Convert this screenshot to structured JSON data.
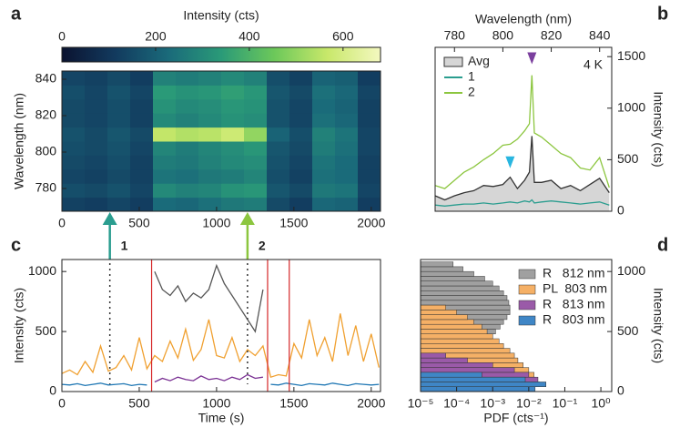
{
  "chart_data": [
    {
      "type": "heatmap",
      "panel": "a",
      "ylabel": "Wavelength (nm)",
      "colorbar_label": "Intensity (cts)",
      "xlim": [
        0,
        2060
      ],
      "xticks": [
        0,
        500,
        1000,
        1500,
        2000
      ],
      "ylim": [
        767.5,
        844.5
      ],
      "yticks": [
        780,
        800,
        820,
        840
      ],
      "clim": [
        0,
        680
      ],
      "cticks": [
        0,
        200,
        400,
        600
      ],
      "colormap": [
        "#0b1330",
        "#123a5e",
        "#1a6a7a",
        "#2a9a78",
        "#6cc85a",
        "#c8e86a",
        "#f4f8c0"
      ],
      "z": [
        [
          130,
          120,
          140,
          120,
          230,
          220,
          240,
          260,
          270,
          150,
          120,
          220,
          210,
          120
        ],
        [
          160,
          150,
          170,
          140,
          300,
          280,
          290,
          320,
          330,
          180,
          150,
          260,
          250,
          140
        ],
        [
          140,
          130,
          150,
          130,
          250,
          240,
          260,
          270,
          290,
          160,
          130,
          240,
          230,
          130
        ],
        [
          150,
          140,
          160,
          130,
          270,
          260,
          280,
          300,
          310,
          170,
          140,
          250,
          230,
          130
        ],
        [
          160,
          150,
          170,
          140,
          290,
          270,
          290,
          310,
          330,
          180,
          150,
          270,
          240,
          140
        ],
        [
          170,
          150,
          180,
          150,
          560,
          540,
          550,
          580,
          500,
          210,
          160,
          280,
          250,
          140
        ],
        [
          150,
          140,
          160,
          130,
          300,
          280,
          300,
          320,
          310,
          170,
          140,
          240,
          220,
          130
        ],
        [
          150,
          140,
          160,
          130,
          320,
          300,
          310,
          330,
          320,
          170,
          140,
          230,
          210,
          130
        ],
        [
          160,
          140,
          170,
          140,
          340,
          320,
          330,
          350,
          330,
          180,
          150,
          240,
          220,
          140
        ],
        [
          140,
          130,
          150,
          120,
          280,
          270,
          280,
          300,
          280,
          160,
          130,
          210,
          200,
          120
        ]
      ]
    },
    {
      "type": "line",
      "panel": "b",
      "xlabel": "Wavelength (nm)",
      "ylabel": "Intensity (cts)",
      "annotation": "4 K",
      "xaxis_position": "top",
      "yaxis_position": "right",
      "legend": "upper left",
      "xlim": [
        772,
        845
      ],
      "xticks": [
        780,
        800,
        820,
        840
      ],
      "ylim": [
        0,
        1590
      ],
      "yticks": [
        0,
        500,
        1000,
        1500
      ],
      "x": [
        772,
        776,
        780,
        784,
        788,
        792,
        796,
        800,
        803,
        806,
        809,
        811,
        812,
        813,
        816,
        820,
        824,
        828,
        832,
        836,
        840,
        844
      ],
      "series": [
        {
          "name": "Avg",
          "color": "#333333",
          "fill": "#d6d6d6",
          "values": [
            150,
            110,
            150,
            180,
            200,
            250,
            240,
            260,
            330,
            220,
            300,
            380,
            730,
            280,
            280,
            300,
            220,
            250,
            200,
            260,
            320,
            180
          ]
        },
        {
          "name": "1",
          "color": "#2a9d8f",
          "values": [
            60,
            50,
            60,
            70,
            70,
            80,
            70,
            80,
            90,
            80,
            100,
            90,
            110,
            80,
            90,
            100,
            90,
            80,
            70,
            80,
            90,
            60
          ]
        },
        {
          "name": "2",
          "color": "#8cc63f",
          "values": [
            250,
            220,
            300,
            380,
            430,
            500,
            560,
            640,
            650,
            700,
            780,
            850,
            1320,
            760,
            720,
            640,
            560,
            520,
            420,
            400,
            520,
            230
          ]
        }
      ],
      "markers": [
        {
          "x": 812,
          "y": 1480,
          "color": "#7b3f9e"
        },
        {
          "x": 803,
          "y": 470,
          "color": "#29b6e0"
        }
      ]
    },
    {
      "type": "line",
      "panel": "c",
      "xlabel": "Time (s)",
      "ylabel": "Intensity (cts)",
      "xaxis_position": "bottom",
      "yaxis_position": "left",
      "xlim": [
        0,
        2060
      ],
      "xticks": [
        0,
        500,
        1000,
        1500,
        2000
      ],
      "ylim": [
        0,
        1100
      ],
      "yticks": [
        0,
        500,
        1000
      ],
      "x": [
        0,
        50,
        100,
        150,
        200,
        250,
        300,
        350,
        400,
        450,
        500,
        550,
        600,
        650,
        700,
        750,
        800,
        850,
        900,
        950,
        1000,
        1050,
        1100,
        1150,
        1200,
        1250,
        1300,
        1350,
        1400,
        1450,
        1500,
        1550,
        1600,
        1650,
        1700,
        1750,
        1800,
        1850,
        1900,
        1950,
        2000,
        2050
      ],
      "series": [
        {
          "name": null,
          "color": "#f0a030",
          "values": [
            150,
            180,
            140,
            250,
            160,
            380,
            170,
            200,
            300,
            180,
            450,
            190,
            300,
            250,
            420,
            280,
            520,
            260,
            350,
            600,
            300,
            280,
            450,
            250,
            350,
            300,
            380,
            120,
            140,
            130,
            400,
            280,
            600,
            300,
            450,
            250,
            650,
            300,
            550,
            250,
            480,
            200
          ]
        },
        {
          "name": null,
          "color": "#555555",
          "values": [
            null,
            null,
            null,
            null,
            null,
            null,
            null,
            null,
            null,
            null,
            null,
            null,
            1000,
            850,
            800,
            880,
            750,
            820,
            780,
            850,
            1050,
            900,
            800,
            700,
            600,
            500,
            850,
            null,
            null,
            null,
            null,
            null,
            null,
            null,
            null,
            null,
            null,
            null,
            null,
            null,
            null,
            null
          ]
        },
        {
          "name": null,
          "color": "#7b3294",
          "values": [
            null,
            null,
            null,
            null,
            null,
            null,
            null,
            null,
            null,
            null,
            null,
            null,
            80,
            110,
            90,
            120,
            100,
            90,
            130,
            100,
            110,
            90,
            120,
            100,
            140,
            110,
            120,
            null,
            null,
            null,
            null,
            null,
            null,
            null,
            null,
            null,
            null,
            null,
            null,
            null,
            null,
            null
          ]
        },
        {
          "name": null,
          "color": "#1f77b4",
          "values": [
            60,
            55,
            65,
            50,
            60,
            70,
            55,
            60,
            65,
            50,
            60,
            55,
            null,
            null,
            null,
            null,
            null,
            null,
            null,
            null,
            null,
            null,
            null,
            null,
            null,
            null,
            null,
            60,
            55,
            70,
            60,
            50,
            65,
            60,
            55,
            70,
            60,
            50,
            65,
            60,
            55,
            60
          ]
        }
      ],
      "vlines": [
        580,
        1330,
        1470
      ],
      "vline_color": "#d62728",
      "arrows": [
        {
          "x": 310,
          "label": "1",
          "color": "#2a9d8f"
        },
        {
          "x": 1200,
          "label": "2",
          "color": "#8cc63f"
        }
      ]
    },
    {
      "type": "histogram",
      "panel": "d",
      "xlabel": "PDF (cts⁻¹)",
      "ylabel": "Intensity (cts)",
      "yaxis_position": "right",
      "legend": "upper right",
      "xscale": "log",
      "xlim": [
        1e-05,
        2
      ],
      "xticks": [
        {
          "value": 1e-05,
          "label": "10⁻⁵"
        },
        {
          "value": 0.0001,
          "label": "10⁻⁴"
        },
        {
          "value": 0.001,
          "label": "10⁻³"
        },
        {
          "value": 0.01,
          "label": "10⁻²"
        },
        {
          "value": 0.1,
          "label": "10⁻¹"
        },
        {
          "value": 1,
          "label": "10⁰"
        }
      ],
      "ylim": [
        0,
        1100
      ],
      "yticks": [
        0,
        500,
        1000
      ],
      "series": [
        {
          "name": "R   812 nm",
          "color": "#a0a0a0",
          "bins": [
            280,
            320,
            360,
            400,
            440,
            480,
            520,
            560,
            600,
            640,
            680,
            720,
            760,
            800,
            840,
            880,
            920,
            960,
            1000,
            1040,
            1080
          ],
          "values": [
            0.0001,
            0.0002,
            0.0004,
            0.0006,
            0.0008,
            0.0012,
            0.0016,
            0.002,
            0.0025,
            0.003,
            0.003,
            0.0028,
            0.0025,
            0.002,
            0.0015,
            0.001,
            0.0006,
            0.0003,
            0.00015,
            8e-05
          ]
        },
        {
          "name": "PL  803 nm",
          "color": "#f5b066",
          "bins": [
            0,
            40,
            80,
            120,
            160,
            200,
            240,
            280,
            320,
            360,
            400,
            440,
            480,
            520,
            560,
            600,
            640,
            680,
            720
          ],
          "values": [
            0.002,
            0.008,
            0.015,
            0.014,
            0.01,
            0.007,
            0.005,
            0.004,
            0.003,
            0.002,
            0.0015,
            0.001,
            0.0007,
            0.0005,
            0.0003,
            0.0002,
            0.0001,
            5e-05
          ]
        },
        {
          "name": "R   813 nm",
          "color": "#9a5aa8",
          "bins": [
            0,
            40,
            80,
            120,
            160,
            200,
            240,
            280,
            320
          ],
          "values": [
            0.005,
            0.02,
            0.018,
            0.01,
            0.004,
            0.001,
            0.0002,
            5e-05
          ]
        },
        {
          "name": "R   803 nm",
          "color": "#3f86c6",
          "bins": [
            0,
            40,
            80,
            120,
            160
          ],
          "values": [
            0.015,
            0.03,
            0.008,
            0.0005
          ]
        }
      ]
    }
  ]
}
